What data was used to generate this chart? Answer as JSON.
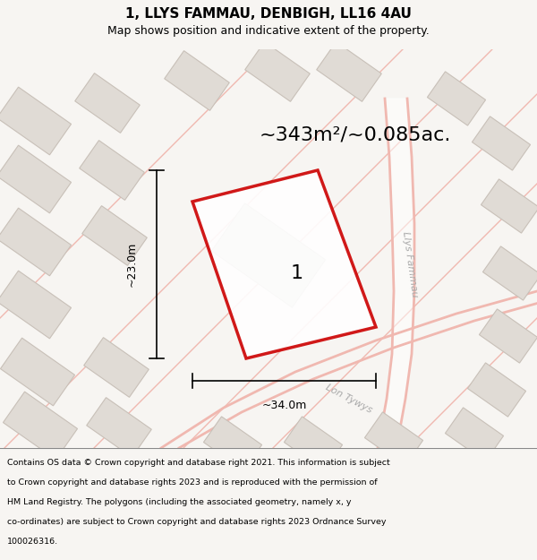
{
  "title_line1": "1, LLYS FAMMAU, DENBIGH, LL16 4AU",
  "title_line2": "Map shows position and indicative extent of the property.",
  "area_text": "~343m²/~0.085ac.",
  "label_plot": "1",
  "label_width": "~34.0m",
  "label_height": "~23.0m",
  "road_label1": "Llys Fammau",
  "road_label2": "Lon Tywys",
  "footer_lines": [
    "Contains OS data © Crown copyright and database right 2021. This information is subject",
    "to Crown copyright and database rights 2023 and is reproduced with the permission of",
    "HM Land Registry. The polygons (including the associated geometry, namely x, y",
    "co-ordinates) are subject to Crown copyright and database rights 2023 Ordnance Survey",
    "100026316."
  ],
  "map_bg": "#f7f5f2",
  "building_fill": "#e0dbd5",
  "building_edge": "#c8c0b8",
  "road_color": "#f0b8b0",
  "road_fill": "#f7f5f2",
  "plot_edge": "#cc0000",
  "plot_fill": "#ffffff",
  "footer_bg": "#ffffff",
  "dim_color": "#000000",
  "road_label_color": "#aaaaaa",
  "title_fontsize": 11,
  "subtitle_fontsize": 9,
  "area_fontsize": 16,
  "label_fontsize": 16,
  "dim_fontsize": 9,
  "road_label_fontsize": 8,
  "footer_fontsize": 6.8
}
